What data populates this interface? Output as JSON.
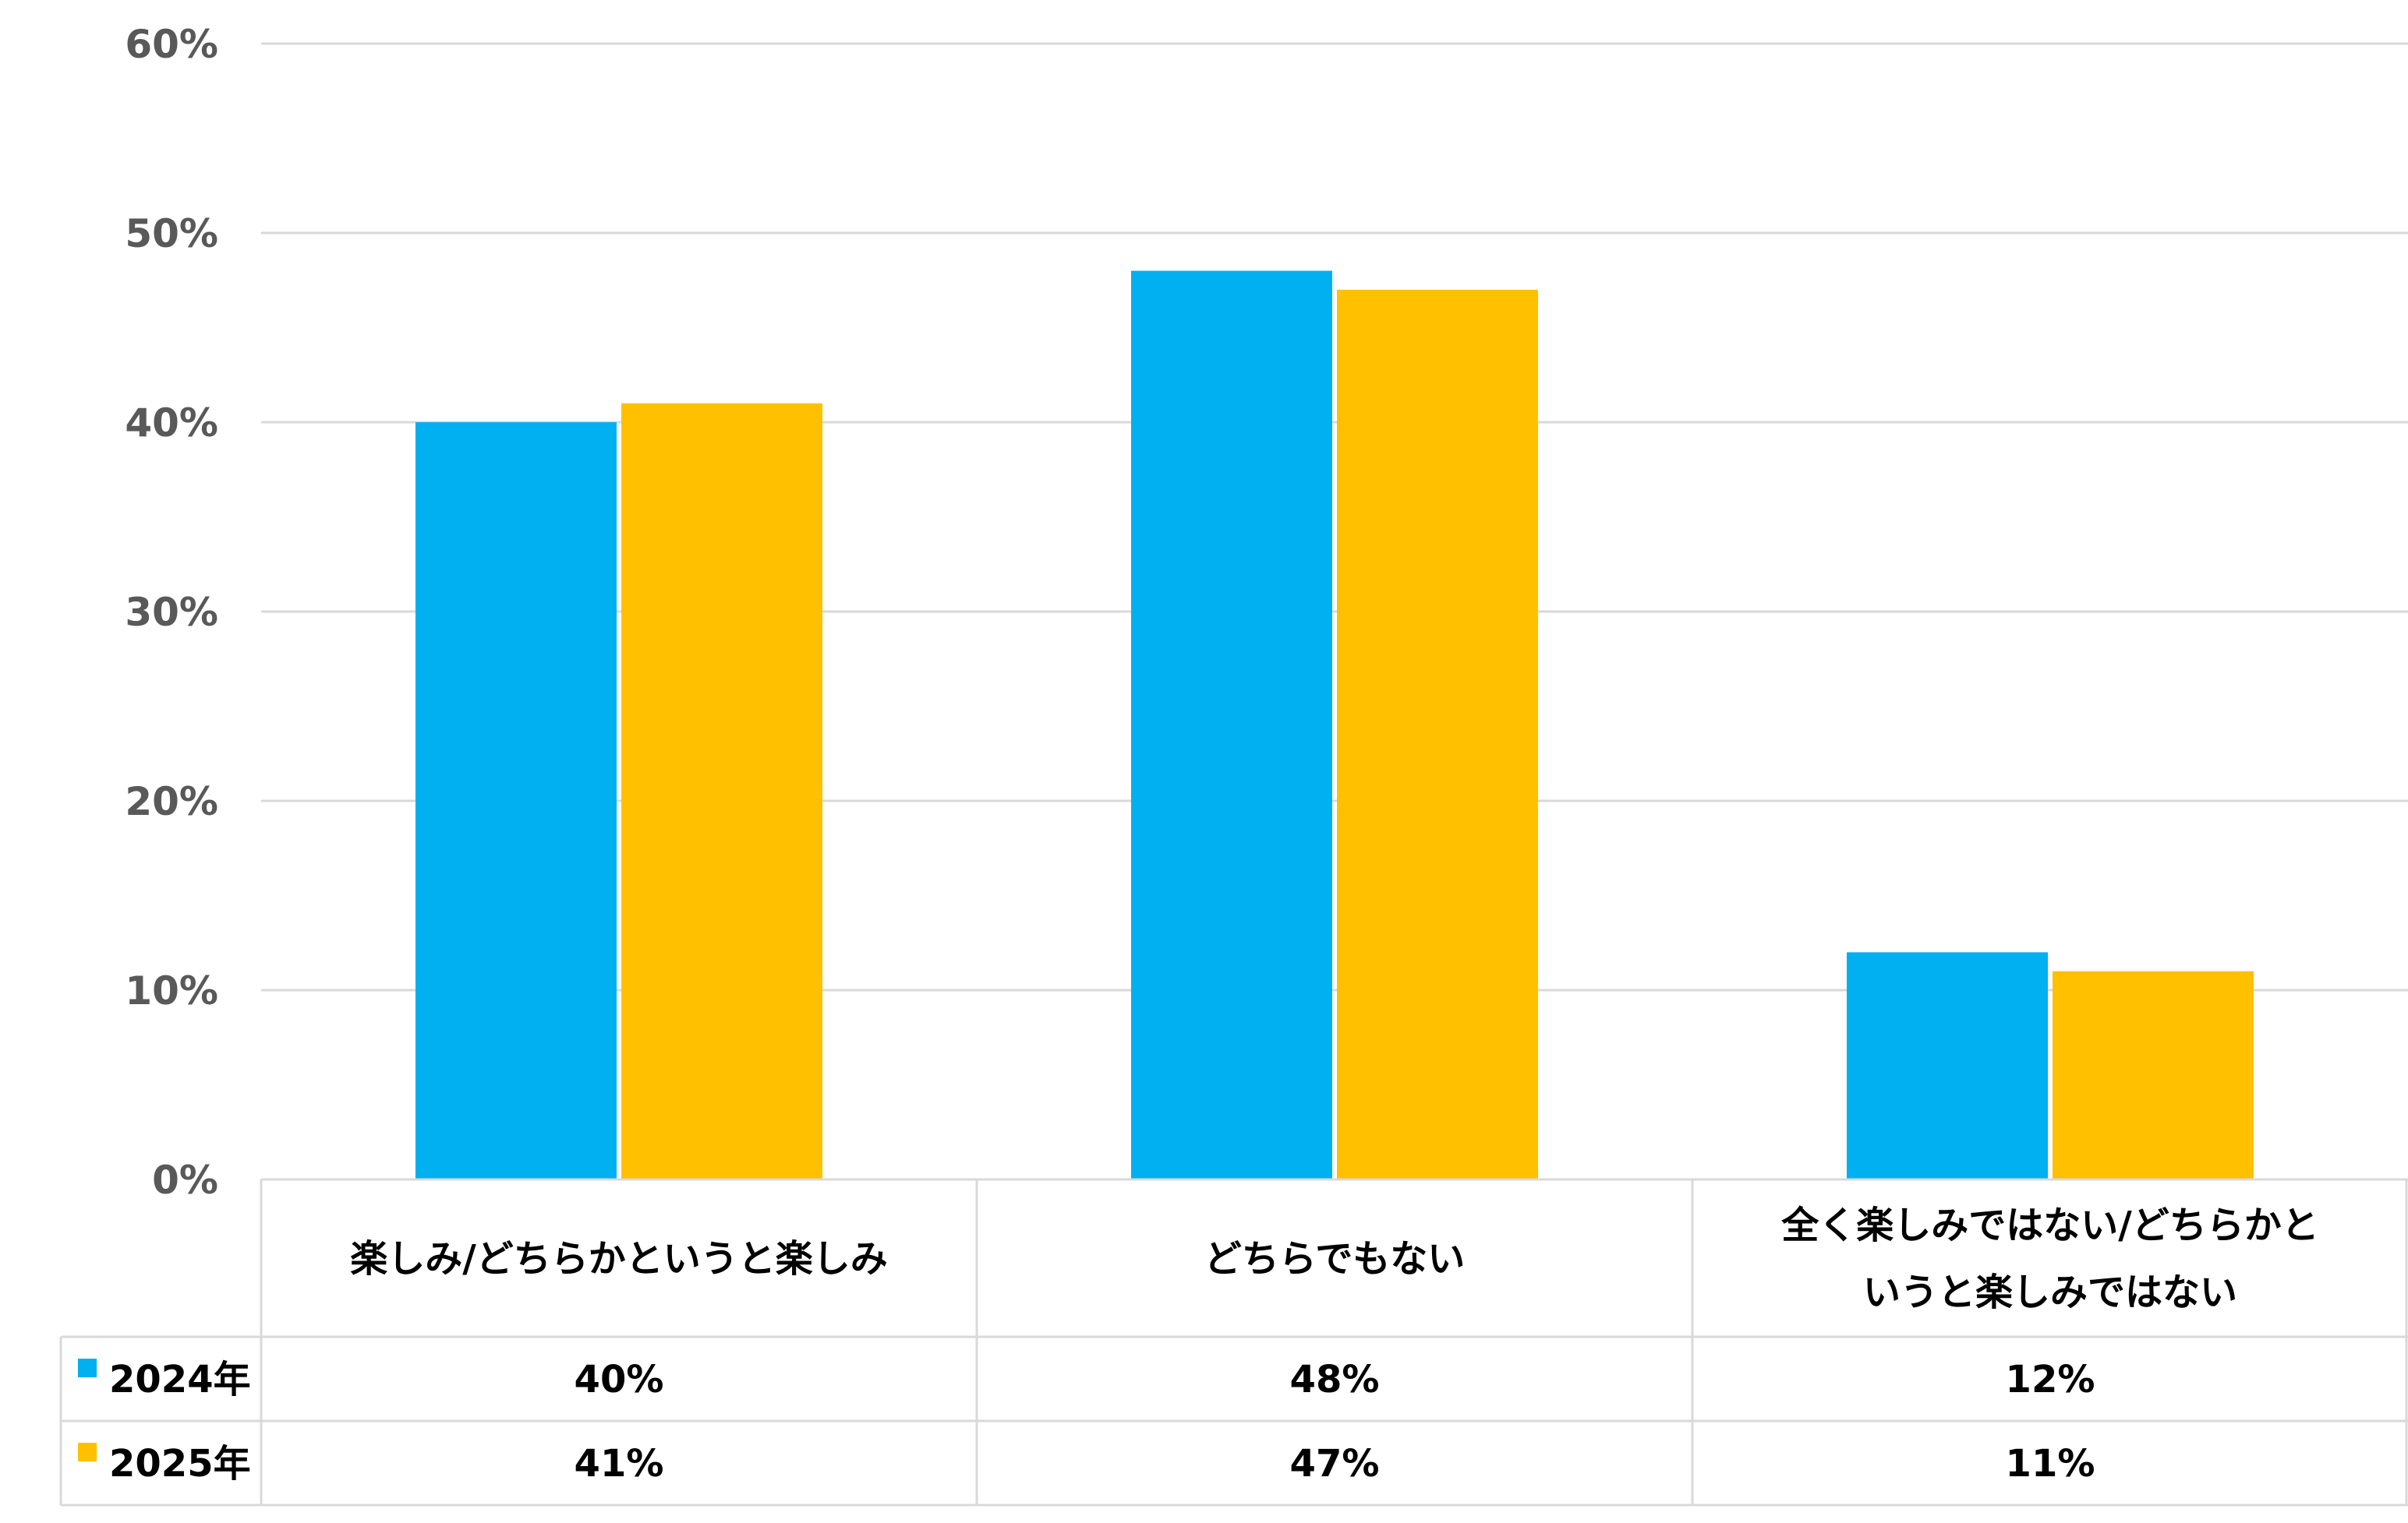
{
  "chart_data": {
    "type": "bar",
    "categories": [
      [
        "楽しみ/どちらかというと楽しみ"
      ],
      [
        "どちらでもない"
      ],
      [
        "全く楽しみではない/どちらかと",
        "いうと楽しみではない"
      ]
    ],
    "series": [
      {
        "name": "2024年",
        "color": "#00B0F0",
        "values": [
          40,
          48,
          12
        ],
        "labels": [
          "40%",
          "48%",
          "12%"
        ]
      },
      {
        "name": "2025年",
        "color": "#FFC000",
        "values": [
          41,
          47,
          11
        ],
        "labels": [
          "41%",
          "47%",
          "11%"
        ]
      }
    ],
    "yaxis": {
      "min": 0,
      "max": 60,
      "step": 10,
      "tick_labels": [
        "0%",
        "10%",
        "20%",
        "30%",
        "40%",
        "50%",
        "60%"
      ]
    },
    "grid": true,
    "legend": "data-table-left",
    "colors": {
      "gridline": "#D9D9D9",
      "table_border": "#D9D9D9",
      "tick_text": "#595959"
    }
  }
}
